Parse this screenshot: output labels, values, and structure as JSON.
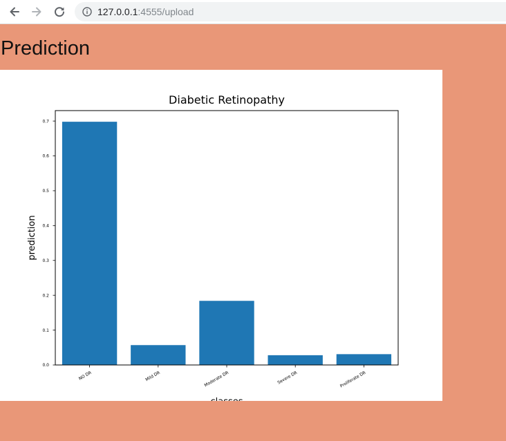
{
  "browser": {
    "url_host": "127.0.0.1",
    "url_rest": ":4555/upload"
  },
  "page": {
    "title": "Prediction"
  },
  "colors": {
    "page_background": "#e99778",
    "bar": "#1f77b4"
  },
  "icons": [
    "back-arrow-icon",
    "forward-arrow-icon",
    "reload-icon",
    "info-icon"
  ],
  "chart_data": {
    "type": "bar",
    "title": "Diabetic Retinopathy",
    "xlabel": "classes",
    "ylabel": "prediction",
    "categories": [
      "NO DR",
      "Mild DR",
      "Moderate DR",
      "Severe DR",
      "Proliferate DR"
    ],
    "values": [
      0.698,
      0.057,
      0.184,
      0.028,
      0.031
    ],
    "ylim": [
      0,
      0.73
    ],
    "yticks": [
      "0.0",
      "0.1",
      "0.2",
      "0.3",
      "0.4",
      "0.5",
      "0.6",
      "0.7"
    ],
    "grid": false,
    "legend": "none"
  }
}
